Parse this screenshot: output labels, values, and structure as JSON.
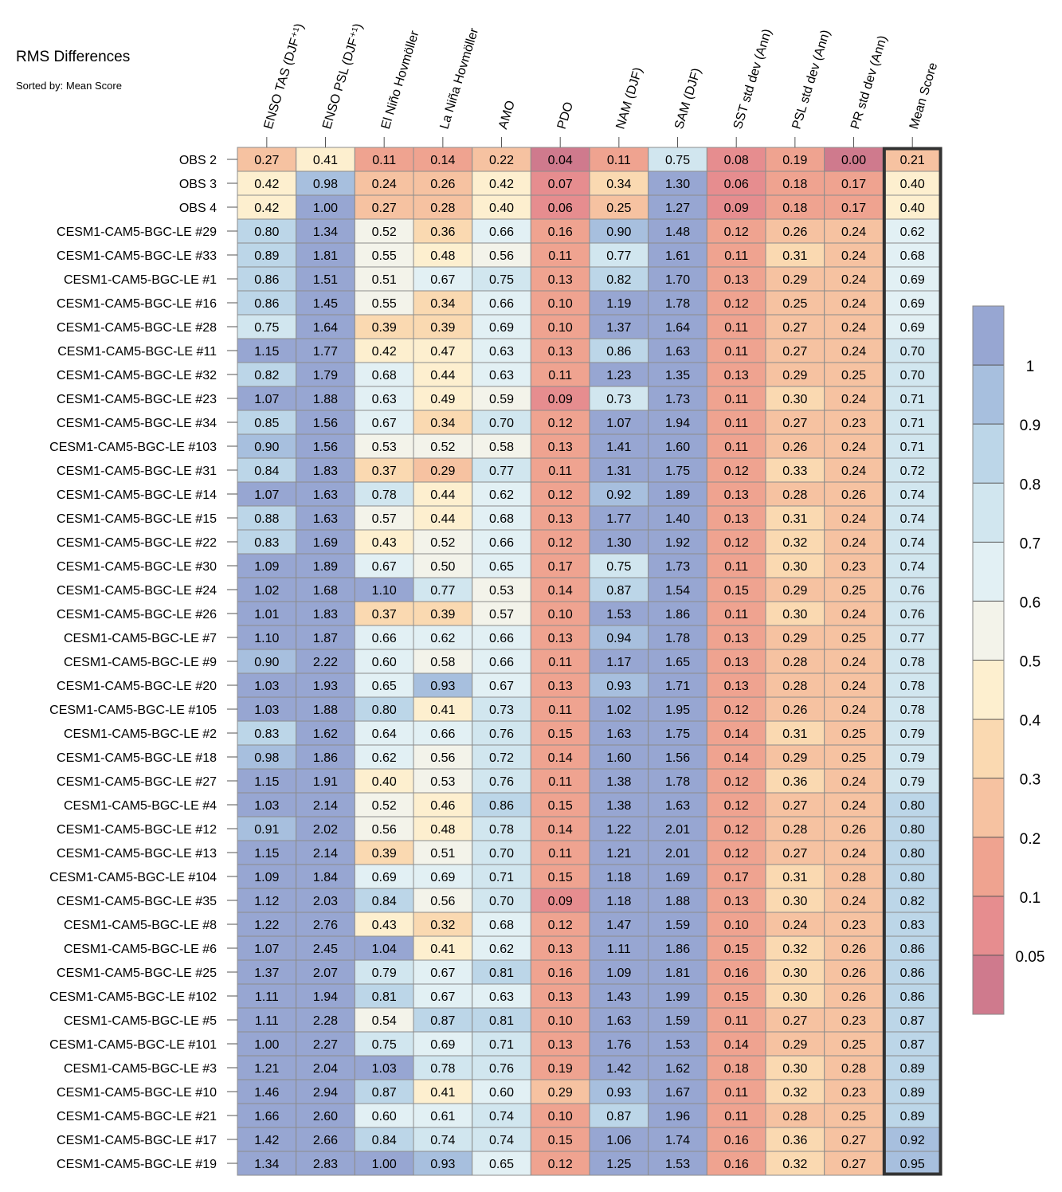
{
  "title": "RMS Differences",
  "subtitle": "Sorted by: Mean Score",
  "colors": {
    "bins": [
      "#cf7a8d",
      "#e68d8f",
      "#efa390",
      "#f6c2a1",
      "#fad9b1",
      "#fdefcf",
      "#f3f3ea",
      "#e2f0f4",
      "#d1e6ef",
      "#bcd6e8",
      "#a7bfde",
      "#97a6d2"
    ],
    "grid": "#8c8c8c",
    "highlight": "#333333"
  },
  "chart_data": {
    "type": "heatmap",
    "title": "RMS Differences",
    "subtitle": "Sorted by: Mean Score",
    "columns": [
      "ENSO TAS (DJF⁺¹)",
      "ENSO PSL (DJF⁺¹)",
      "El Niño Hovmöller",
      "La Niña Hovmöller",
      "AMO",
      "PDO",
      "NAM (DJF)",
      "SAM (DJF)",
      "SST std dev (Ann)",
      "PSL std dev (Ann)",
      "PR std dev (Ann)",
      "Mean Score"
    ],
    "highlighted_column": "Mean Score",
    "rows": [
      {
        "label": "OBS 2",
        "values": [
          0.27,
          0.41,
          0.11,
          0.14,
          0.22,
          0.04,
          0.11,
          0.75,
          0.08,
          0.19,
          0.0,
          0.21
        ]
      },
      {
        "label": "OBS 3",
        "values": [
          0.42,
          0.98,
          0.24,
          0.26,
          0.42,
          0.07,
          0.34,
          1.3,
          0.06,
          0.18,
          0.17,
          0.4
        ]
      },
      {
        "label": "OBS 4",
        "values": [
          0.42,
          1.0,
          0.27,
          0.28,
          0.4,
          0.06,
          0.25,
          1.27,
          0.09,
          0.18,
          0.17,
          0.4
        ]
      },
      {
        "label": "CESM1-CAM5-BGC-LE #29",
        "values": [
          0.8,
          1.34,
          0.52,
          0.36,
          0.66,
          0.16,
          0.9,
          1.48,
          0.12,
          0.26,
          0.24,
          0.62
        ]
      },
      {
        "label": "CESM1-CAM5-BGC-LE #33",
        "values": [
          0.89,
          1.81,
          0.55,
          0.48,
          0.56,
          0.11,
          0.77,
          1.61,
          0.11,
          0.31,
          0.24,
          0.68
        ]
      },
      {
        "label": "CESM1-CAM5-BGC-LE #1",
        "values": [
          0.86,
          1.51,
          0.51,
          0.67,
          0.75,
          0.13,
          0.82,
          1.7,
          0.13,
          0.29,
          0.24,
          0.69
        ]
      },
      {
        "label": "CESM1-CAM5-BGC-LE #16",
        "values": [
          0.86,
          1.45,
          0.55,
          0.34,
          0.66,
          0.1,
          1.19,
          1.78,
          0.12,
          0.25,
          0.24,
          0.69
        ]
      },
      {
        "label": "CESM1-CAM5-BGC-LE #28",
        "values": [
          0.75,
          1.64,
          0.39,
          0.39,
          0.69,
          0.1,
          1.37,
          1.64,
          0.11,
          0.27,
          0.24,
          0.69
        ]
      },
      {
        "label": "CESM1-CAM5-BGC-LE #11",
        "values": [
          1.15,
          1.77,
          0.42,
          0.47,
          0.63,
          0.13,
          0.86,
          1.63,
          0.11,
          0.27,
          0.24,
          0.7
        ]
      },
      {
        "label": "CESM1-CAM5-BGC-LE #32",
        "values": [
          0.82,
          1.79,
          0.68,
          0.44,
          0.63,
          0.11,
          1.23,
          1.35,
          0.13,
          0.29,
          0.25,
          0.7
        ]
      },
      {
        "label": "CESM1-CAM5-BGC-LE #23",
        "values": [
          1.07,
          1.88,
          0.63,
          0.49,
          0.59,
          0.09,
          0.73,
          1.73,
          0.11,
          0.3,
          0.24,
          0.71
        ]
      },
      {
        "label": "CESM1-CAM5-BGC-LE #34",
        "values": [
          0.85,
          1.56,
          0.67,
          0.34,
          0.7,
          0.12,
          1.07,
          1.94,
          0.11,
          0.27,
          0.23,
          0.71
        ]
      },
      {
        "label": "CESM1-CAM5-BGC-LE #103",
        "values": [
          0.9,
          1.56,
          0.53,
          0.52,
          0.58,
          0.13,
          1.41,
          1.6,
          0.11,
          0.26,
          0.24,
          0.71
        ]
      },
      {
        "label": "CESM1-CAM5-BGC-LE #31",
        "values": [
          0.84,
          1.83,
          0.37,
          0.29,
          0.77,
          0.11,
          1.31,
          1.75,
          0.12,
          0.33,
          0.24,
          0.72
        ]
      },
      {
        "label": "CESM1-CAM5-BGC-LE #14",
        "values": [
          1.07,
          1.63,
          0.78,
          0.44,
          0.62,
          0.12,
          0.92,
          1.89,
          0.13,
          0.28,
          0.26,
          0.74
        ]
      },
      {
        "label": "CESM1-CAM5-BGC-LE #15",
        "values": [
          0.88,
          1.63,
          0.57,
          0.44,
          0.68,
          0.13,
          1.77,
          1.4,
          0.13,
          0.31,
          0.24,
          0.74
        ]
      },
      {
        "label": "CESM1-CAM5-BGC-LE #22",
        "values": [
          0.83,
          1.69,
          0.43,
          0.52,
          0.66,
          0.12,
          1.3,
          1.92,
          0.12,
          0.32,
          0.24,
          0.74
        ]
      },
      {
        "label": "CESM1-CAM5-BGC-LE #30",
        "values": [
          1.09,
          1.89,
          0.67,
          0.5,
          0.65,
          0.17,
          0.75,
          1.73,
          0.11,
          0.3,
          0.23,
          0.74
        ]
      },
      {
        "label": "CESM1-CAM5-BGC-LE #24",
        "values": [
          1.02,
          1.68,
          1.1,
          0.77,
          0.53,
          0.14,
          0.87,
          1.54,
          0.15,
          0.29,
          0.25,
          0.76
        ]
      },
      {
        "label": "CESM1-CAM5-BGC-LE #26",
        "values": [
          1.01,
          1.83,
          0.37,
          0.39,
          0.57,
          0.1,
          1.53,
          1.86,
          0.11,
          0.3,
          0.24,
          0.76
        ]
      },
      {
        "label": "CESM1-CAM5-BGC-LE #7",
        "values": [
          1.1,
          1.87,
          0.66,
          0.62,
          0.66,
          0.13,
          0.94,
          1.78,
          0.13,
          0.29,
          0.25,
          0.77
        ]
      },
      {
        "label": "CESM1-CAM5-BGC-LE #9",
        "values": [
          0.9,
          2.22,
          0.6,
          0.58,
          0.66,
          0.11,
          1.17,
          1.65,
          0.13,
          0.28,
          0.24,
          0.78
        ]
      },
      {
        "label": "CESM1-CAM5-BGC-LE #20",
        "values": [
          1.03,
          1.93,
          0.65,
          0.93,
          0.67,
          0.13,
          0.93,
          1.71,
          0.13,
          0.28,
          0.24,
          0.78
        ]
      },
      {
        "label": "CESM1-CAM5-BGC-LE #105",
        "values": [
          1.03,
          1.88,
          0.8,
          0.41,
          0.73,
          0.11,
          1.02,
          1.95,
          0.12,
          0.26,
          0.24,
          0.78
        ]
      },
      {
        "label": "CESM1-CAM5-BGC-LE #2",
        "values": [
          0.83,
          1.62,
          0.64,
          0.66,
          0.76,
          0.15,
          1.63,
          1.75,
          0.14,
          0.31,
          0.25,
          0.79
        ]
      },
      {
        "label": "CESM1-CAM5-BGC-LE #18",
        "values": [
          0.98,
          1.86,
          0.62,
          0.56,
          0.72,
          0.14,
          1.6,
          1.56,
          0.14,
          0.29,
          0.25,
          0.79
        ]
      },
      {
        "label": "CESM1-CAM5-BGC-LE #27",
        "values": [
          1.15,
          1.91,
          0.4,
          0.53,
          0.76,
          0.11,
          1.38,
          1.78,
          0.12,
          0.36,
          0.24,
          0.79
        ]
      },
      {
        "label": "CESM1-CAM5-BGC-LE #4",
        "values": [
          1.03,
          2.14,
          0.52,
          0.46,
          0.86,
          0.15,
          1.38,
          1.63,
          0.12,
          0.27,
          0.24,
          0.8
        ]
      },
      {
        "label": "CESM1-CAM5-BGC-LE #12",
        "values": [
          0.91,
          2.02,
          0.56,
          0.48,
          0.78,
          0.14,
          1.22,
          2.01,
          0.12,
          0.28,
          0.26,
          0.8
        ]
      },
      {
        "label": "CESM1-CAM5-BGC-LE #13",
        "values": [
          1.15,
          2.14,
          0.39,
          0.51,
          0.7,
          0.11,
          1.21,
          2.01,
          0.12,
          0.27,
          0.24,
          0.8
        ]
      },
      {
        "label": "CESM1-CAM5-BGC-LE #104",
        "values": [
          1.09,
          1.84,
          0.69,
          0.69,
          0.71,
          0.15,
          1.18,
          1.69,
          0.17,
          0.31,
          0.28,
          0.8
        ]
      },
      {
        "label": "CESM1-CAM5-BGC-LE #35",
        "values": [
          1.12,
          2.03,
          0.84,
          0.56,
          0.7,
          0.09,
          1.18,
          1.88,
          0.13,
          0.3,
          0.24,
          0.82
        ]
      },
      {
        "label": "CESM1-CAM5-BGC-LE #8",
        "values": [
          1.22,
          2.76,
          0.43,
          0.32,
          0.68,
          0.12,
          1.47,
          1.59,
          0.1,
          0.24,
          0.23,
          0.83
        ]
      },
      {
        "label": "CESM1-CAM5-BGC-LE #6",
        "values": [
          1.07,
          2.45,
          1.04,
          0.41,
          0.62,
          0.13,
          1.11,
          1.86,
          0.15,
          0.32,
          0.26,
          0.86
        ]
      },
      {
        "label": "CESM1-CAM5-BGC-LE #25",
        "values": [
          1.37,
          2.07,
          0.79,
          0.67,
          0.81,
          0.16,
          1.09,
          1.81,
          0.16,
          0.3,
          0.26,
          0.86
        ]
      },
      {
        "label": "CESM1-CAM5-BGC-LE #102",
        "values": [
          1.11,
          1.94,
          0.81,
          0.67,
          0.63,
          0.13,
          1.43,
          1.99,
          0.15,
          0.3,
          0.26,
          0.86
        ]
      },
      {
        "label": "CESM1-CAM5-BGC-LE #5",
        "values": [
          1.11,
          2.28,
          0.54,
          0.87,
          0.81,
          0.1,
          1.63,
          1.59,
          0.11,
          0.27,
          0.23,
          0.87
        ]
      },
      {
        "label": "CESM1-CAM5-BGC-LE #101",
        "values": [
          1.0,
          2.27,
          0.75,
          0.69,
          0.71,
          0.13,
          1.76,
          1.53,
          0.14,
          0.29,
          0.25,
          0.87
        ]
      },
      {
        "label": "CESM1-CAM5-BGC-LE #3",
        "values": [
          1.21,
          2.04,
          1.03,
          0.78,
          0.76,
          0.19,
          1.42,
          1.62,
          0.18,
          0.3,
          0.28,
          0.89
        ]
      },
      {
        "label": "CESM1-CAM5-BGC-LE #10",
        "values": [
          1.46,
          2.94,
          0.87,
          0.41,
          0.6,
          0.29,
          0.93,
          1.67,
          0.11,
          0.32,
          0.23,
          0.89
        ]
      },
      {
        "label": "CESM1-CAM5-BGC-LE #21",
        "values": [
          1.66,
          2.6,
          0.6,
          0.61,
          0.74,
          0.1,
          0.87,
          1.96,
          0.11,
          0.28,
          0.25,
          0.89
        ]
      },
      {
        "label": "CESM1-CAM5-BGC-LE #17",
        "values": [
          1.42,
          2.66,
          0.84,
          0.74,
          0.74,
          0.15,
          1.06,
          1.74,
          0.16,
          0.36,
          0.27,
          0.92
        ]
      },
      {
        "label": "CESM1-CAM5-BGC-LE #19",
        "values": [
          1.34,
          2.83,
          1.0,
          0.93,
          0.65,
          0.12,
          1.25,
          1.53,
          0.16,
          0.32,
          0.27,
          0.95
        ]
      }
    ],
    "colorbar": {
      "bin_edges": [
        0.05,
        0.1,
        0.2,
        0.3,
        0.4,
        0.5,
        0.6,
        0.7,
        0.8,
        0.9,
        1
      ],
      "tick_labels": [
        "0.05",
        "0.1",
        "0.2",
        "0.3",
        "0.4",
        "0.5",
        "0.6",
        "0.7",
        "0.8",
        "0.9",
        "1"
      ],
      "extends": "both"
    }
  }
}
